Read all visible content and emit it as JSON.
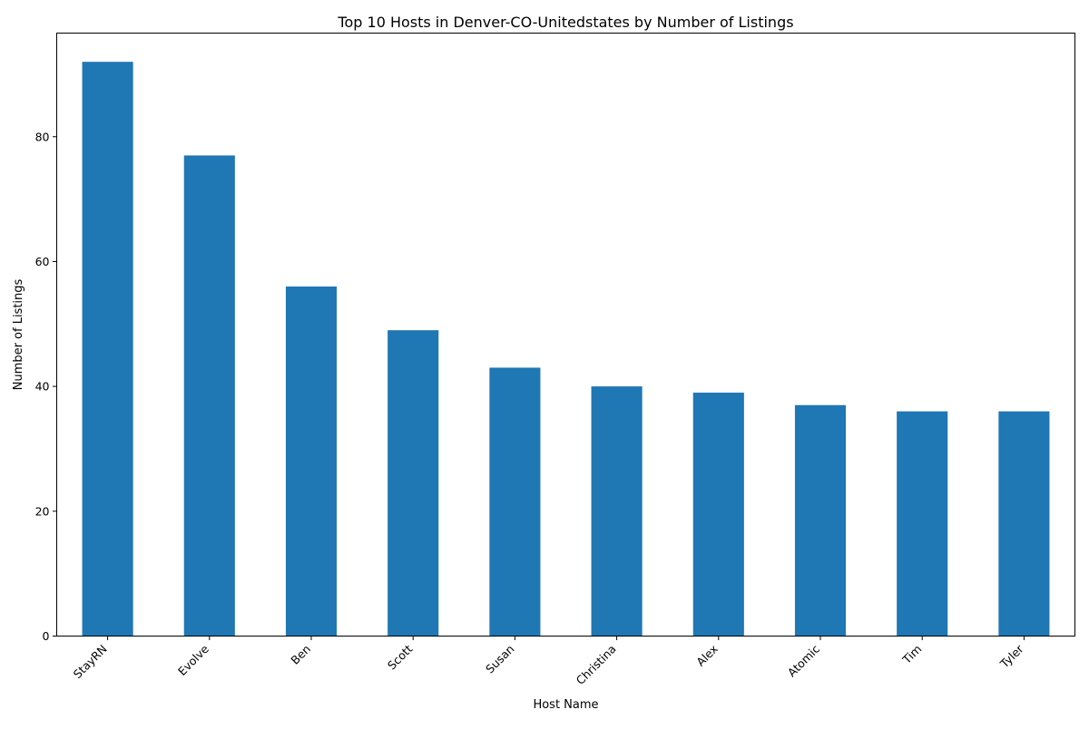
{
  "chart_data": {
    "type": "bar",
    "title": "Top 10 Hosts in Denver-CO-Unitedstates by Number of Listings",
    "xlabel": "Host Name",
    "ylabel": "Number of Listings",
    "categories": [
      "StayRN",
      "Evolve",
      "Ben",
      "Scott",
      "Susan",
      "Christina",
      "Alex",
      "Atomic",
      "Tim",
      "Tyler"
    ],
    "values": [
      92,
      77,
      56,
      49,
      43,
      40,
      39,
      37,
      36,
      36
    ],
    "ylim": [
      0,
      96.6
    ],
    "yticks": [
      0,
      20,
      40,
      60,
      80
    ],
    "grid": false,
    "legend": "none",
    "bar_color": "#1f77b4"
  }
}
